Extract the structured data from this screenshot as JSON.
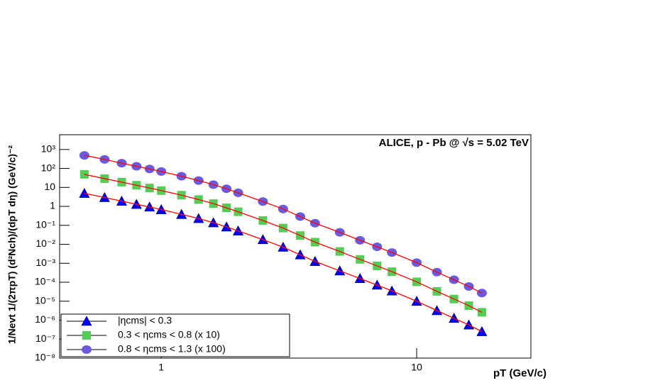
{
  "chart_data": {
    "type": "scatter",
    "title": "ALICE, p - Pb @ √s = 5.02 TeV",
    "x_label": "pT (GeV/c)",
    "y_label": "1/Nevt 1/(2πpT) (d²Nch)/(dpT dη) (GeV/c)⁻²",
    "x_scale": "log",
    "y_scale": "log",
    "xlim": [
      0.4,
      28
    ],
    "ylim": [
      1e-08,
      6000
    ],
    "xticks": [
      1,
      10
    ],
    "yticks": [
      {
        "value": 1000,
        "label": "10³"
      },
      {
        "value": 100,
        "label": "10²"
      },
      10,
      1,
      {
        "value": 0.1,
        "label": "10⁻¹"
      },
      {
        "value": 0.01,
        "label": "10⁻²"
      },
      {
        "value": 0.001,
        "label": "10⁻³"
      },
      {
        "value": 0.0001,
        "label": "10⁻⁴"
      },
      {
        "value": 1e-05,
        "label": "10⁻⁵"
      },
      {
        "value": 1e-06,
        "label": "10⁻⁶"
      },
      {
        "value": 1e-07,
        "label": "10⁻⁷"
      },
      {
        "value": 1e-08,
        "label": "10⁻⁸"
      }
    ],
    "legend": "lower left",
    "fit_color": "#ff0000",
    "x": [
      0.5,
      0.6,
      0.7,
      0.8,
      0.9,
      1.0,
      1.2,
      1.4,
      1.6,
      1.8,
      2.0,
      2.5,
      3.0,
      3.5,
      4.0,
      5.0,
      6.0,
      7.0,
      8.0,
      10,
      12,
      14,
      16,
      18
    ],
    "series": [
      {
        "name": "|ηcms| < 0.3",
        "color": "#0000ff",
        "marker": "triangle",
        "values": [
          4.9,
          2.95,
          1.9,
          1.29,
          0.93,
          0.68,
          0.38,
          0.23,
          0.138,
          0.083,
          0.051,
          0.0178,
          0.0071,
          0.0028,
          0.00126,
          0.0004,
          0.000158,
          7.1e-05,
          3.5e-05,
          1e-05,
          3.2e-06,
          1.26e-06,
          5.6e-07,
          2.5e-07
        ]
      },
      {
        "name": "0.3 < ηcms < 0.8 (x 10)",
        "color": "#55cc55",
        "marker": "square",
        "values": [
          49,
          29,
          19,
          13,
          9.3,
          6.8,
          3.9,
          2.3,
          1.4,
          0.84,
          0.52,
          0.18,
          0.072,
          0.029,
          0.013,
          0.0042,
          0.0016,
          0.00073,
          0.00036,
          0.000105,
          3.3e-05,
          1.3e-05,
          5.8e-06,
          2.6e-06
        ]
      },
      {
        "name": "0.8 < ηcms < 1.3 (x 100)",
        "color": "#6a5ae0",
        "marker": "circle",
        "values": [
          490,
          300,
          190,
          130,
          94,
          69,
          39,
          23,
          14,
          8.5,
          5.2,
          1.8,
          0.73,
          0.29,
          0.13,
          0.043,
          0.0163,
          0.0074,
          0.0037,
          0.00108,
          0.00034,
          0.000135,
          6e-05,
          2.7e-05
        ]
      }
    ]
  }
}
